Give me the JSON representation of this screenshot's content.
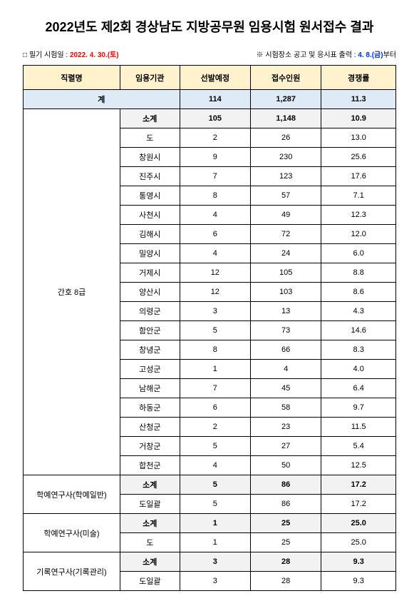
{
  "title": "2022년도 제2회 경상남도 지방공무원 임용시험 원서접수 결과",
  "meta": {
    "exam_label": "□ 필기 시험일 : ",
    "exam_date": "2022. 4. 30.(토)",
    "right_prefix": "※ 시험장소 공고 및 응시표 출력 : ",
    "right_date": "4. 8.(금)",
    "right_suffix": "부터"
  },
  "headers": [
    "직렬명",
    "임용기관",
    "선발예정",
    "접수인원",
    "경쟁률"
  ],
  "total": {
    "label": "계",
    "planned": "114",
    "applied": "1,287",
    "rate": "11.3"
  },
  "groups": [
    {
      "name": "간호 8급",
      "subtotal": {
        "label": "소계",
        "planned": "105",
        "applied": "1,148",
        "rate": "10.9"
      },
      "rows": [
        {
          "agency": "도",
          "planned": "2",
          "applied": "26",
          "rate": "13.0"
        },
        {
          "agency": "창원시",
          "planned": "9",
          "applied": "230",
          "rate": "25.6"
        },
        {
          "agency": "진주시",
          "planned": "7",
          "applied": "123",
          "rate": "17.6"
        },
        {
          "agency": "통영시",
          "planned": "8",
          "applied": "57",
          "rate": "7.1"
        },
        {
          "agency": "사천시",
          "planned": "4",
          "applied": "49",
          "rate": "12.3"
        },
        {
          "agency": "김해시",
          "planned": "6",
          "applied": "72",
          "rate": "12.0"
        },
        {
          "agency": "밀양시",
          "planned": "4",
          "applied": "24",
          "rate": "6.0"
        },
        {
          "agency": "거제시",
          "planned": "12",
          "applied": "105",
          "rate": "8.8"
        },
        {
          "agency": "양산시",
          "planned": "12",
          "applied": "103",
          "rate": "8.6"
        },
        {
          "agency": "의령군",
          "planned": "3",
          "applied": "13",
          "rate": "4.3"
        },
        {
          "agency": "함안군",
          "planned": "5",
          "applied": "73",
          "rate": "14.6"
        },
        {
          "agency": "창녕군",
          "planned": "8",
          "applied": "66",
          "rate": "8.3"
        },
        {
          "agency": "고성군",
          "planned": "1",
          "applied": "4",
          "rate": "4.0"
        },
        {
          "agency": "남해군",
          "planned": "7",
          "applied": "45",
          "rate": "6.4"
        },
        {
          "agency": "하동군",
          "planned": "6",
          "applied": "58",
          "rate": "9.7"
        },
        {
          "agency": "산청군",
          "planned": "2",
          "applied": "23",
          "rate": "11.5"
        },
        {
          "agency": "거창군",
          "planned": "5",
          "applied": "27",
          "rate": "5.4"
        },
        {
          "agency": "합천군",
          "planned": "4",
          "applied": "50",
          "rate": "12.5"
        }
      ]
    },
    {
      "name": "학예연구사(학예일반)",
      "subtotal": {
        "label": "소계",
        "planned": "5",
        "applied": "86",
        "rate": "17.2"
      },
      "rows": [
        {
          "agency": "도일괄",
          "planned": "5",
          "applied": "86",
          "rate": "17.2"
        }
      ]
    },
    {
      "name": "학예연구사(미술)",
      "subtotal": {
        "label": "소계",
        "planned": "1",
        "applied": "25",
        "rate": "25.0"
      },
      "rows": [
        {
          "agency": "도",
          "planned": "1",
          "applied": "25",
          "rate": "25.0"
        }
      ]
    },
    {
      "name": "기록연구사(기록관리)",
      "subtotal": {
        "label": "소계",
        "planned": "3",
        "applied": "28",
        "rate": "9.3"
      },
      "rows": [
        {
          "agency": "도일괄",
          "planned": "3",
          "applied": "28",
          "rate": "9.3"
        }
      ]
    }
  ]
}
